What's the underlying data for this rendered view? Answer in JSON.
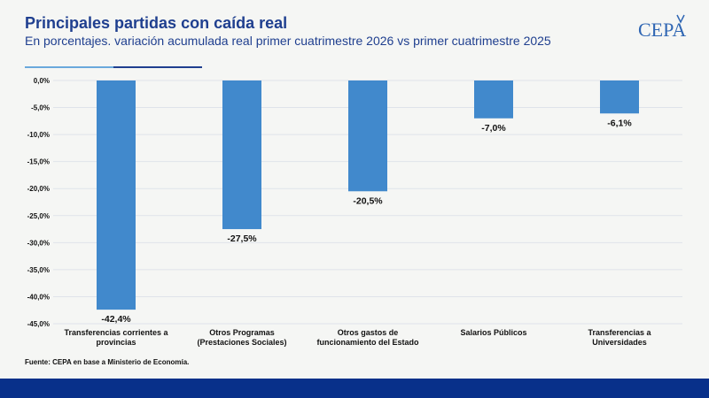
{
  "header": {
    "title": "Principales partidas con caída real",
    "subtitle": "En porcentajes. variación acumulada real primer cuatrimestre 2026 vs primer cuatrimestre 2025"
  },
  "logo": {
    "text": "CEPA"
  },
  "source": "Fuente: CEPA en base a  Ministerio de Economía.",
  "colors": {
    "bar": "#4189cc",
    "title": "#1f3f8f",
    "footer": "#08308a",
    "grid": "#dfe3ea"
  },
  "chart_data": {
    "type": "bar",
    "categories": [
      [
        "Transferencias corrientes a",
        "provincias"
      ],
      [
        "Otros Programas",
        "(Prestaciones Sociales)"
      ],
      [
        "Otros gastos de",
        "funcionamiento del Estado"
      ],
      [
        "Salarios Públicos"
      ],
      [
        "Transferencias a",
        "Universidades"
      ]
    ],
    "values": [
      -42.4,
      -27.5,
      -20.5,
      -7.0,
      -6.1
    ],
    "value_labels": [
      "-42,4%",
      "-27,5%",
      "-20,5%",
      "-7,0%",
      "-6,1%"
    ],
    "ylim": [
      -45,
      0
    ],
    "yticks": [
      0,
      -5,
      -10,
      -15,
      -20,
      -25,
      -30,
      -35,
      -40,
      -45
    ],
    "ytick_labels": [
      "0,0%",
      "-5,0%",
      "-10,0%",
      "-15,0%",
      "-20,0%",
      "-25,0%",
      "-30,0%",
      "-35,0%",
      "-40,0%",
      "-45,0%"
    ],
    "grid": true,
    "legend": "none"
  }
}
